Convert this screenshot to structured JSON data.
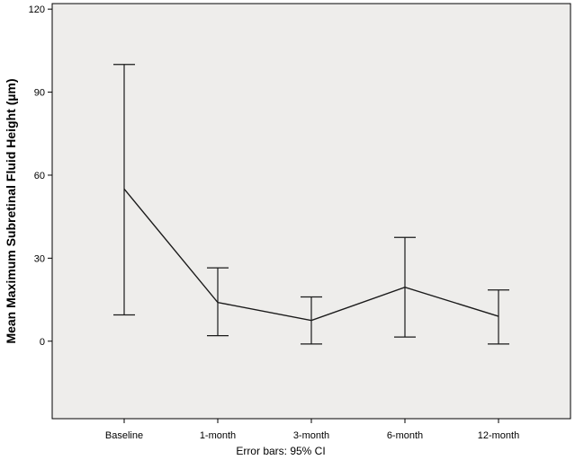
{
  "chart_data": {
    "type": "line",
    "title": "",
    "xlabel": "",
    "ylabel": "Mean Maximum Subretinal Fluid Height (µm)",
    "footnote": "Error bars: 95% CI",
    "categories": [
      "Baseline",
      "1-month",
      "3-month",
      "6-month",
      "12-month"
    ],
    "series": [
      {
        "values": [
          55,
          14,
          7.5,
          19.5,
          9
        ],
        "ci_lower": [
          9.5,
          2,
          -1,
          1.5,
          -1
        ],
        "ci_upper": [
          100,
          26.5,
          16,
          37.5,
          18.5
        ]
      }
    ],
    "ylim": [
      -28,
      122
    ],
    "yticks": [
      0,
      30,
      60,
      90,
      120
    ],
    "ytick_labels": [
      "0",
      "30",
      "60",
      "90",
      "120"
    ],
    "grid": false,
    "legend": "none",
    "colors": {
      "plot_background": "#eeedeb",
      "line": "#1a1a1a",
      "axis": "#000000"
    }
  }
}
